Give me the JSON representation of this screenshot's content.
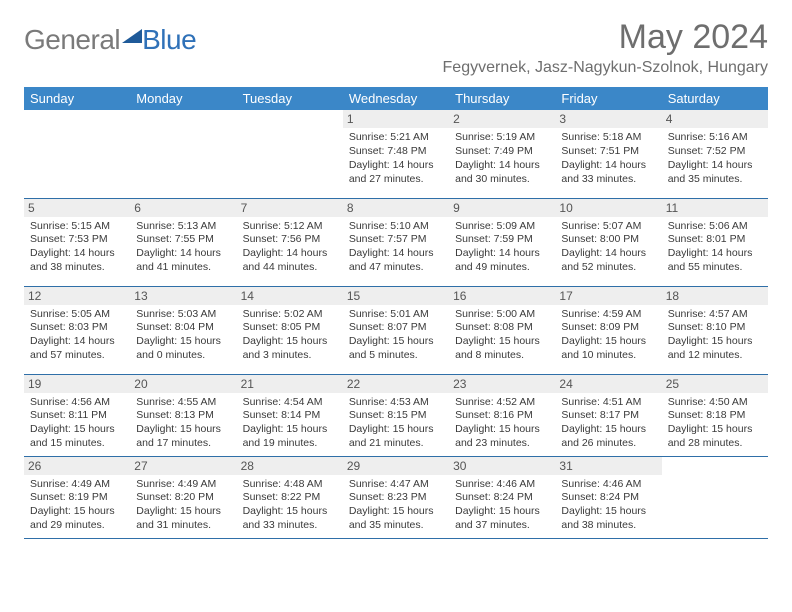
{
  "logo": {
    "part1": "General",
    "part2": "Blue"
  },
  "title": {
    "month": "May 2024",
    "location": "Fegyvernek, Jasz-Nagykun-Szolnok, Hungary"
  },
  "colors": {
    "header_bg": "#3b87c8",
    "row_border": "#2f6fa8",
    "daynum_bg": "#eeeeee",
    "logo_grey": "#7a7a7a",
    "logo_blue": "#2f71b8",
    "title_grey": "#6e6e6e",
    "tri_fill": "#1f5a99"
  },
  "weekdays": [
    "Sunday",
    "Monday",
    "Tuesday",
    "Wednesday",
    "Thursday",
    "Friday",
    "Saturday"
  ],
  "weeks": [
    [
      null,
      null,
      null,
      {
        "n": "1",
        "sr": "5:21 AM",
        "ss": "7:48 PM",
        "dl": "14 hours and 27 minutes."
      },
      {
        "n": "2",
        "sr": "5:19 AM",
        "ss": "7:49 PM",
        "dl": "14 hours and 30 minutes."
      },
      {
        "n": "3",
        "sr": "5:18 AM",
        "ss": "7:51 PM",
        "dl": "14 hours and 33 minutes."
      },
      {
        "n": "4",
        "sr": "5:16 AM",
        "ss": "7:52 PM",
        "dl": "14 hours and 35 minutes."
      }
    ],
    [
      {
        "n": "5",
        "sr": "5:15 AM",
        "ss": "7:53 PM",
        "dl": "14 hours and 38 minutes."
      },
      {
        "n": "6",
        "sr": "5:13 AM",
        "ss": "7:55 PM",
        "dl": "14 hours and 41 minutes."
      },
      {
        "n": "7",
        "sr": "5:12 AM",
        "ss": "7:56 PM",
        "dl": "14 hours and 44 minutes."
      },
      {
        "n": "8",
        "sr": "5:10 AM",
        "ss": "7:57 PM",
        "dl": "14 hours and 47 minutes."
      },
      {
        "n": "9",
        "sr": "5:09 AM",
        "ss": "7:59 PM",
        "dl": "14 hours and 49 minutes."
      },
      {
        "n": "10",
        "sr": "5:07 AM",
        "ss": "8:00 PM",
        "dl": "14 hours and 52 minutes."
      },
      {
        "n": "11",
        "sr": "5:06 AM",
        "ss": "8:01 PM",
        "dl": "14 hours and 55 minutes."
      }
    ],
    [
      {
        "n": "12",
        "sr": "5:05 AM",
        "ss": "8:03 PM",
        "dl": "14 hours and 57 minutes."
      },
      {
        "n": "13",
        "sr": "5:03 AM",
        "ss": "8:04 PM",
        "dl": "15 hours and 0 minutes."
      },
      {
        "n": "14",
        "sr": "5:02 AM",
        "ss": "8:05 PM",
        "dl": "15 hours and 3 minutes."
      },
      {
        "n": "15",
        "sr": "5:01 AM",
        "ss": "8:07 PM",
        "dl": "15 hours and 5 minutes."
      },
      {
        "n": "16",
        "sr": "5:00 AM",
        "ss": "8:08 PM",
        "dl": "15 hours and 8 minutes."
      },
      {
        "n": "17",
        "sr": "4:59 AM",
        "ss": "8:09 PM",
        "dl": "15 hours and 10 minutes."
      },
      {
        "n": "18",
        "sr": "4:57 AM",
        "ss": "8:10 PM",
        "dl": "15 hours and 12 minutes."
      }
    ],
    [
      {
        "n": "19",
        "sr": "4:56 AM",
        "ss": "8:11 PM",
        "dl": "15 hours and 15 minutes."
      },
      {
        "n": "20",
        "sr": "4:55 AM",
        "ss": "8:13 PM",
        "dl": "15 hours and 17 minutes."
      },
      {
        "n": "21",
        "sr": "4:54 AM",
        "ss": "8:14 PM",
        "dl": "15 hours and 19 minutes."
      },
      {
        "n": "22",
        "sr": "4:53 AM",
        "ss": "8:15 PM",
        "dl": "15 hours and 21 minutes."
      },
      {
        "n": "23",
        "sr": "4:52 AM",
        "ss": "8:16 PM",
        "dl": "15 hours and 23 minutes."
      },
      {
        "n": "24",
        "sr": "4:51 AM",
        "ss": "8:17 PM",
        "dl": "15 hours and 26 minutes."
      },
      {
        "n": "25",
        "sr": "4:50 AM",
        "ss": "8:18 PM",
        "dl": "15 hours and 28 minutes."
      }
    ],
    [
      {
        "n": "26",
        "sr": "4:49 AM",
        "ss": "8:19 PM",
        "dl": "15 hours and 29 minutes."
      },
      {
        "n": "27",
        "sr": "4:49 AM",
        "ss": "8:20 PM",
        "dl": "15 hours and 31 minutes."
      },
      {
        "n": "28",
        "sr": "4:48 AM",
        "ss": "8:22 PM",
        "dl": "15 hours and 33 minutes."
      },
      {
        "n": "29",
        "sr": "4:47 AM",
        "ss": "8:23 PM",
        "dl": "15 hours and 35 minutes."
      },
      {
        "n": "30",
        "sr": "4:46 AM",
        "ss": "8:24 PM",
        "dl": "15 hours and 37 minutes."
      },
      {
        "n": "31",
        "sr": "4:46 AM",
        "ss": "8:24 PM",
        "dl": "15 hours and 38 minutes."
      },
      null
    ]
  ],
  "labels": {
    "sunrise": "Sunrise:",
    "sunset": "Sunset:",
    "daylight": "Daylight:"
  }
}
